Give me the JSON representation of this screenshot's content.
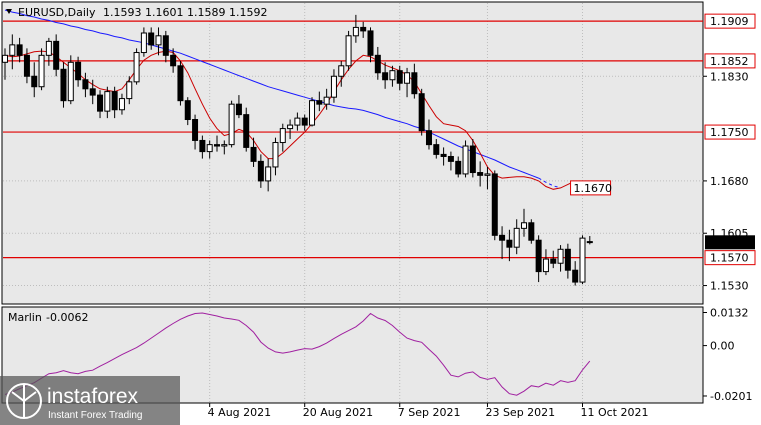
{
  "header": {
    "symbol": "EURUSD,Daily",
    "ohlc": "1.1593 1.1601 1.1589 1.1592"
  },
  "indicator": {
    "name": "Marlin",
    "value": "-0.0062",
    "ticks": [
      "0.0132",
      "0.00",
      "-0.0201"
    ]
  },
  "watermark": {
    "brand": "instaforex",
    "tagline": "Instant Forex Trading"
  },
  "colors": {
    "background": "#e8e8e8",
    "level_line": "#e00000",
    "ma_blue": "#1a1aff",
    "ma_red": "#cc0000",
    "oscillator": "#a020a0",
    "candle": "#000000"
  },
  "chart_data": {
    "type": "candlestick",
    "price_axis": {
      "ticks": [
        "1.1830",
        "1.1680",
        "1.1605",
        "1.1530"
      ],
      "range": [
        1.1505,
        1.1935
      ]
    },
    "levels": [
      {
        "value": 1.1909,
        "label": "1.1909"
      },
      {
        "value": 1.1852,
        "label": "1.1852"
      },
      {
        "value": 1.175,
        "label": "1.1750"
      },
      {
        "value": 1.157,
        "label": "1.1570"
      }
    ],
    "current_price_label": "1.1592",
    "ma_end_label": "1.1670",
    "x_ticks": [
      {
        "label": "4 Aug 2021",
        "index": 28
      },
      {
        "label": "20 Aug 2021",
        "index": 41
      },
      {
        "label": "7 Sep 2021",
        "index": 54
      },
      {
        "label": "23 Sep 2021",
        "index": 66
      },
      {
        "label": "11 Oct 2021",
        "index": 79
      }
    ],
    "candles": [
      [
        1.185,
        1.187,
        1.1825,
        1.186
      ],
      [
        1.186,
        1.189,
        1.184,
        1.1875
      ],
      [
        1.1875,
        1.1885,
        1.185,
        1.186
      ],
      [
        1.186,
        1.187,
        1.182,
        1.183
      ],
      [
        1.183,
        1.185,
        1.18,
        1.1815
      ],
      [
        1.1815,
        1.187,
        1.181,
        1.186
      ],
      [
        1.186,
        1.1885,
        1.1845,
        1.188
      ],
      [
        1.188,
        1.189,
        1.183,
        1.184
      ],
      [
        1.184,
        1.185,
        1.1785,
        1.1795
      ],
      [
        1.1795,
        1.186,
        1.179,
        1.185
      ],
      [
        1.185,
        1.1858,
        1.1815,
        1.1825
      ],
      [
        1.1825,
        1.1835,
        1.18,
        1.1812
      ],
      [
        1.1812,
        1.1825,
        1.179,
        1.1803
      ],
      [
        1.1803,
        1.181,
        1.177,
        1.178
      ],
      [
        1.178,
        1.1815,
        1.177,
        1.1808
      ],
      [
        1.1808,
        1.1815,
        1.177,
        1.1782
      ],
      [
        1.1782,
        1.1805,
        1.1775,
        1.1798
      ],
      [
        1.1798,
        1.183,
        1.179,
        1.1822
      ],
      [
        1.1822,
        1.187,
        1.1818,
        1.1864
      ],
      [
        1.1864,
        1.19,
        1.1858,
        1.1892
      ],
      [
        1.1892,
        1.19,
        1.1868,
        1.1875
      ],
      [
        1.1875,
        1.19,
        1.186,
        1.1888
      ],
      [
        1.1888,
        1.1895,
        1.185,
        1.186
      ],
      [
        1.186,
        1.187,
        1.1835,
        1.1845
      ],
      [
        1.1845,
        1.1852,
        1.1788,
        1.1795
      ],
      [
        1.1795,
        1.18,
        1.176,
        1.1768
      ],
      [
        1.1768,
        1.1775,
        1.1725,
        1.1738
      ],
      [
        1.1738,
        1.1745,
        1.1712,
        1.1722
      ],
      [
        1.1722,
        1.1738,
        1.1712,
        1.1732
      ],
      [
        1.1732,
        1.1745,
        1.1722,
        1.173
      ],
      [
        1.173,
        1.1738,
        1.1718,
        1.1732
      ],
      [
        1.1732,
        1.1795,
        1.1728,
        1.179
      ],
      [
        1.179,
        1.1803,
        1.177,
        1.1775
      ],
      [
        1.1775,
        1.1785,
        1.1722,
        1.1728
      ],
      [
        1.1728,
        1.1742,
        1.17,
        1.1708
      ],
      [
        1.1708,
        1.1718,
        1.167,
        1.168
      ],
      [
        1.168,
        1.1712,
        1.1665,
        1.17
      ],
      [
        1.17,
        1.1742,
        1.1688,
        1.1735
      ],
      [
        1.1735,
        1.1762,
        1.1722,
        1.1755
      ],
      [
        1.1755,
        1.1768,
        1.174,
        1.176
      ],
      [
        1.176,
        1.1778,
        1.1752,
        1.177
      ],
      [
        1.177,
        1.1775,
        1.1752,
        1.176
      ],
      [
        1.176,
        1.18,
        1.1758,
        1.1795
      ],
      [
        1.1795,
        1.1808,
        1.178,
        1.179
      ],
      [
        1.179,
        1.1812,
        1.1782,
        1.18
      ],
      [
        1.18,
        1.184,
        1.1792,
        1.183
      ],
      [
        1.183,
        1.1852,
        1.1815,
        1.1845
      ],
      [
        1.1845,
        1.1895,
        1.1838,
        1.1888
      ],
      [
        1.1888,
        1.1918,
        1.1878,
        1.19
      ],
      [
        1.19,
        1.1908,
        1.1885,
        1.1895
      ],
      [
        1.1895,
        1.19,
        1.185,
        1.186
      ],
      [
        1.186,
        1.1872,
        1.1825,
        1.1835
      ],
      [
        1.1835,
        1.185,
        1.1812,
        1.1825
      ],
      [
        1.1825,
        1.1845,
        1.1815,
        1.1838
      ],
      [
        1.1838,
        1.1845,
        1.181,
        1.182
      ],
      [
        1.182,
        1.1842,
        1.18,
        1.1835
      ],
      [
        1.1835,
        1.1848,
        1.1798,
        1.1805
      ],
      [
        1.1805,
        1.1812,
        1.1745,
        1.1752
      ],
      [
        1.1752,
        1.1768,
        1.1725,
        1.1732
      ],
      [
        1.1732,
        1.174,
        1.1712,
        1.1718
      ],
      [
        1.1718,
        1.1728,
        1.1702,
        1.1715
      ],
      [
        1.1715,
        1.1722,
        1.1695,
        1.1708
      ],
      [
        1.1708,
        1.1715,
        1.1685,
        1.169
      ],
      [
        1.169,
        1.1738,
        1.1685,
        1.173
      ],
      [
        1.173,
        1.174,
        1.1685,
        1.1692
      ],
      [
        1.1692,
        1.1708,
        1.1672,
        1.1688
      ],
      [
        1.1688,
        1.17,
        1.1668,
        1.169
      ],
      [
        1.169,
        1.1695,
        1.1595,
        1.1602
      ],
      [
        1.1602,
        1.1615,
        1.1568,
        1.1595
      ],
      [
        1.1595,
        1.161,
        1.1565,
        1.1585
      ],
      [
        1.1585,
        1.1625,
        1.1575,
        1.1612
      ],
      [
        1.1612,
        1.164,
        1.16,
        1.162
      ],
      [
        1.162,
        1.1625,
        1.159,
        1.1595
      ],
      [
        1.1595,
        1.1602,
        1.1535,
        1.155
      ],
      [
        1.155,
        1.1582,
        1.1545,
        1.1568
      ],
      [
        1.1568,
        1.158,
        1.1555,
        1.1562
      ],
      [
        1.1562,
        1.1588,
        1.155,
        1.1582
      ],
      [
        1.1582,
        1.159,
        1.154,
        1.1552
      ],
      [
        1.1552,
        1.1565,
        1.153,
        1.1535
      ],
      [
        1.1535,
        1.1602,
        1.1532,
        1.1598
      ],
      [
        1.1593,
        1.1601,
        1.1589,
        1.1592
      ]
    ],
    "ma_blue": [
      1.1925,
      1.1922,
      1.192,
      1.1917,
      1.1915,
      1.1912,
      1.191,
      1.1907,
      1.1905,
      1.1902,
      1.19,
      1.1897,
      1.1895,
      1.1892,
      1.189,
      1.1887,
      1.1885,
      1.1882,
      1.188,
      1.1878,
      1.1875,
      1.1872,
      1.1869,
      1.1866,
      1.1863,
      1.1859,
      1.1855,
      1.1851,
      1.1847,
      1.1843,
      1.1839,
      1.1835,
      1.1831,
      1.1827,
      1.1823,
      1.1819,
      1.1815,
      1.1812,
      1.1809,
      1.1806,
      1.1803,
      1.18,
      1.1797,
      1.1794,
      1.1791,
      1.1788,
      1.1786,
      1.1784,
      1.1783,
      1.1781,
      1.1778,
      1.1775,
      1.1771,
      1.1768,
      1.1765,
      1.1762,
      1.1758,
      1.1755,
      1.175,
      1.1745,
      1.174,
      1.1735,
      1.173,
      1.1726,
      1.1722,
      1.1718,
      1.1714,
      1.171,
      1.1705,
      1.17,
      1.1696,
      1.1692,
      1.1688,
      1.1684
    ],
    "ma_blue_projection": [
      1.1684,
      1.1678,
      1.1673,
      1.167
    ],
    "ma_red": [
      1.186,
      1.1858,
      1.1859,
      1.1862,
      1.1865,
      1.1866,
      1.1865,
      1.1858,
      1.185,
      1.1842,
      1.1834,
      1.1825,
      1.1818,
      1.1812,
      1.181,
      1.1808,
      1.1812,
      1.1825,
      1.184,
      1.1853,
      1.186,
      1.1864,
      1.1866,
      1.1864,
      1.1852,
      1.1835,
      1.1812,
      1.179,
      1.177,
      1.1755,
      1.1745,
      1.1748,
      1.1754,
      1.175,
      1.1738,
      1.1722,
      1.1712,
      1.1712,
      1.172,
      1.173,
      1.174,
      1.175,
      1.1762,
      1.1775,
      1.179,
      1.1808,
      1.1825,
      1.184,
      1.1852,
      1.186,
      1.1858,
      1.1852,
      1.1846,
      1.1842,
      1.1838,
      1.1832,
      1.1822,
      1.1805,
      1.1788,
      1.1772,
      1.1762,
      1.176,
      1.1758,
      1.1752,
      1.1738,
      1.172,
      1.17,
      1.1688,
      1.1684,
      1.1685,
      1.1686,
      1.1686,
      1.1684,
      1.168,
      1.1672,
      1.1668,
      1.167,
      1.1675,
      1.168
    ],
    "osc_axis": {
      "range": [
        -0.0225,
        0.015
      ]
    },
    "oscillator": [
      -0.0195,
      -0.0185,
      -0.0172,
      -0.016,
      -0.0148,
      -0.013,
      -0.0112,
      -0.0108,
      -0.01,
      -0.0108,
      -0.0112,
      -0.0103,
      -0.0098,
      -0.0082,
      -0.0068,
      -0.0052,
      -0.0036,
      -0.0022,
      -0.0008,
      0.001,
      0.003,
      0.005,
      0.007,
      0.0088,
      0.0105,
      0.0118,
      0.0128,
      0.013,
      0.0124,
      0.0118,
      0.011,
      0.0106,
      0.0101,
      0.008,
      0.0054,
      0.0014,
      -0.001,
      -0.0025,
      -0.003,
      -0.0025,
      -0.0018,
      -0.0012,
      -0.0014,
      -0.0004,
      0.001,
      0.0028,
      0.0045,
      0.006,
      0.0075,
      0.0098,
      0.0128,
      0.011,
      0.01,
      0.008,
      0.0054,
      0.003,
      0.002,
      0.0013,
      -0.0015,
      -0.0042,
      -0.0078,
      -0.0118,
      -0.0125,
      -0.011,
      -0.0105,
      -0.0127,
      -0.0135,
      -0.0128,
      -0.0165,
      -0.0192,
      -0.0198,
      -0.0182,
      -0.016,
      -0.0165,
      -0.015,
      -0.0158,
      -0.014,
      -0.0147,
      -0.014,
      -0.0097,
      -0.0062
    ]
  }
}
